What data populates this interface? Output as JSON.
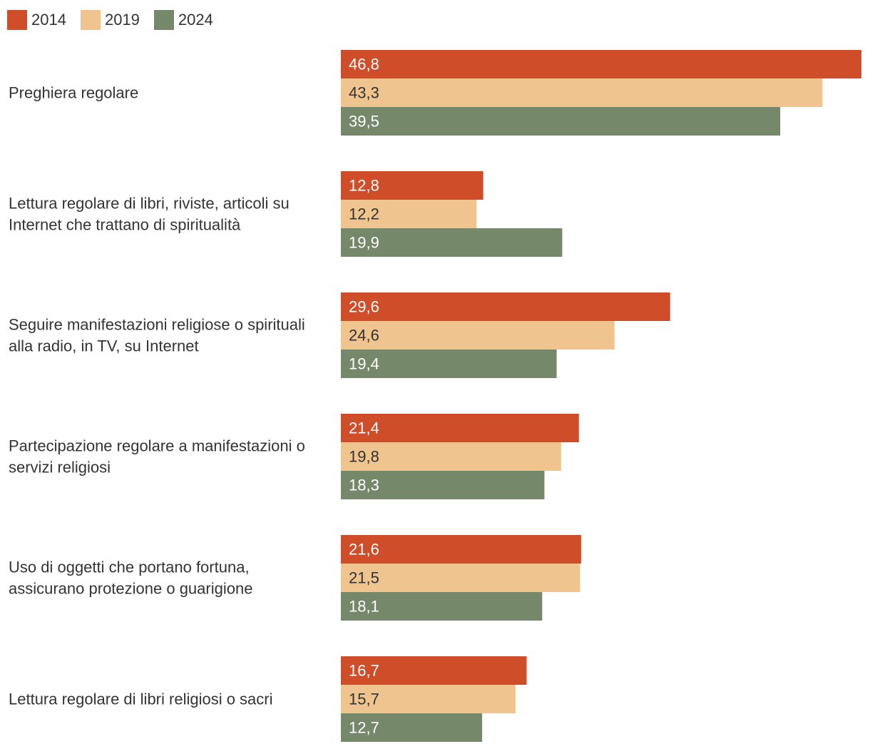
{
  "chart_data": {
    "type": "bar",
    "orientation": "horizontal",
    "categories": [
      "Preghiera regolare",
      "Lettura regolare di libri, riviste, articoli su Internet che trattano di spiritualità",
      "Seguire manifestazioni religiose o spirituali alla radio, in TV, su Internet",
      "Partecipazione regolare a manifestazioni o servizi religiosi",
      "Uso di oggetti che portano fortuna, assicurano protezione o guarigione",
      "Lettura regolare di libri religiosi o sacri"
    ],
    "category_lines": [
      [
        "Preghiera regolare"
      ],
      [
        "Lettura regolare di libri, riviste, articoli su",
        "Internet che trattano di spiritualità"
      ],
      [
        "Seguire manifestazioni religiose o spirituali",
        "alla radio, in TV, su Internet"
      ],
      [
        "Partecipazione regolare a manifestazioni o",
        "servizi religiosi"
      ],
      [
        "Uso di oggetti che portano fortuna,",
        "assicurano protezione o guarigione"
      ],
      [
        "Lettura regolare di libri religiosi o sacri"
      ]
    ],
    "series": [
      {
        "name": "2014",
        "color": "#cf4d28",
        "label_color": "#ffffff",
        "values": [
          46.8,
          12.8,
          29.6,
          21.4,
          21.6,
          16.7
        ],
        "labels": [
          "46,8",
          "12,8",
          "29,6",
          "21,4",
          "21,6",
          "16,7"
        ]
      },
      {
        "name": "2019",
        "color": "#efc48f",
        "label_color": "#333333",
        "values": [
          43.3,
          12.2,
          24.6,
          19.8,
          21.5,
          15.7
        ],
        "labels": [
          "43,3",
          "12,2",
          "24,6",
          "19,8",
          "21,5",
          "15,7"
        ]
      },
      {
        "name": "2024",
        "color": "#76886a",
        "label_color": "#ffffff",
        "values": [
          39.5,
          19.9,
          19.4,
          18.3,
          18.1,
          12.7
        ],
        "labels": [
          "39,5",
          "19,9",
          "19,4",
          "18,3",
          "18,1",
          "12,7"
        ]
      }
    ],
    "xlim": [
      0,
      46.8
    ],
    "legend_position": "top-left",
    "grid": false
  }
}
